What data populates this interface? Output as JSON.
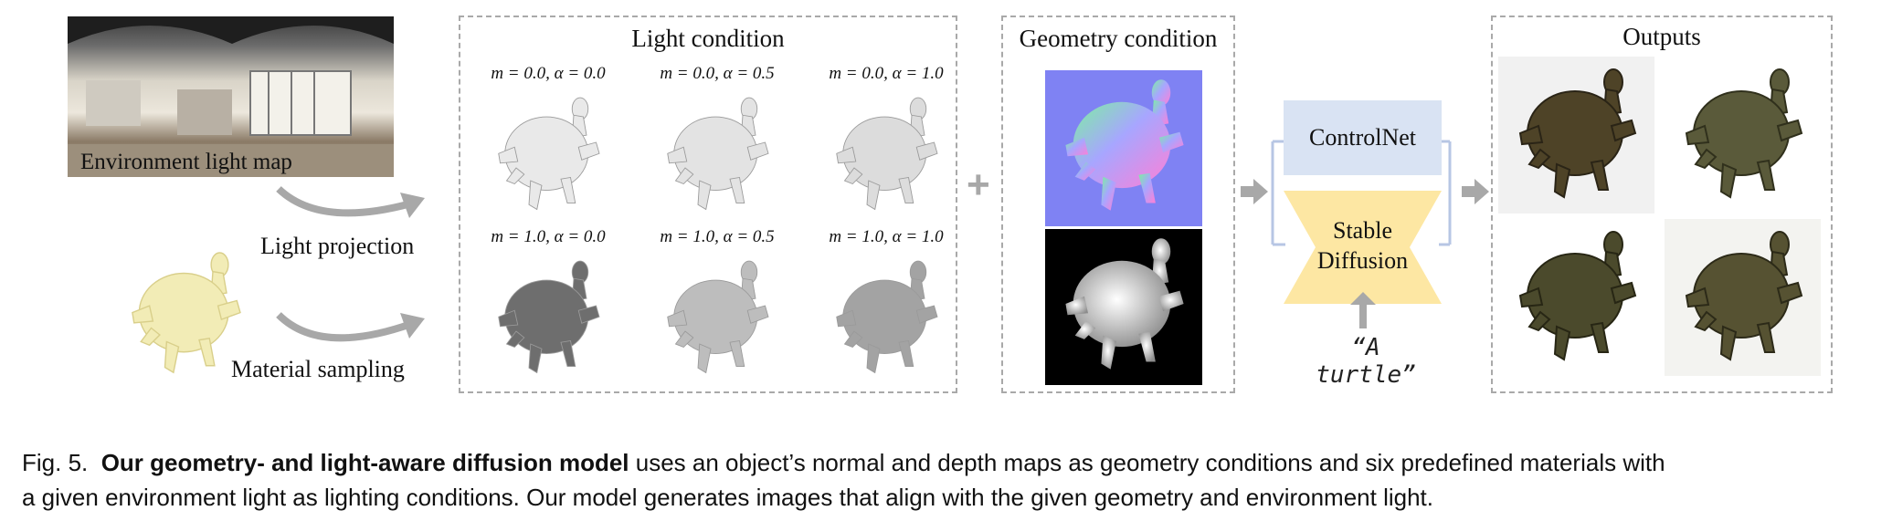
{
  "panels": {
    "env_map_label": "Environment light map",
    "light_projection": "Light projection",
    "material_sampling": "Material sampling",
    "light_condition_title": "Light condition",
    "geometry_condition_title": "Geometry condition",
    "outputs_title": "Outputs",
    "plus_sign": "+",
    "controlnet": "ControlNet",
    "stable_diffusion_line1": "Stable",
    "stable_diffusion_line2": "Diffusion",
    "prompt": "“A turtle”"
  },
  "materials": [
    {
      "label": "m = 0.0, α = 0.0",
      "tone": "#e9e9e9"
    },
    {
      "label": "m = 0.0, α = 0.5",
      "tone": "#e3e3e3"
    },
    {
      "label": "m = 0.0, α = 1.0",
      "tone": "#dcdcdc"
    },
    {
      "label": "m = 1.0, α = 0.0",
      "tone": "#6e6e6e"
    },
    {
      "label": "m = 1.0, α = 0.5",
      "tone": "#bdbdbd"
    },
    {
      "label": "m = 1.0, α = 1.0",
      "tone": "#a3a3a3"
    }
  ],
  "caption": {
    "prefix": "Fig. 5.",
    "bold": "Our geometry- and light-aware diffusion model",
    "rest_line1": " uses an object’s normal and depth maps as geometry conditions and six predefined materials with",
    "line2": "a given environment light as lighting conditions. Our model generates images that align with the given geometry and environment light."
  },
  "colors": {
    "controlnet_fill": "#d9e3f3",
    "stable_diffusion_fill": "#fde7a3",
    "dash_border": "#a9a9a9",
    "arrow_gray": "#a8a8a8",
    "normal_map_bg": "#7f82f3",
    "depth_map_bg": "#000000"
  }
}
